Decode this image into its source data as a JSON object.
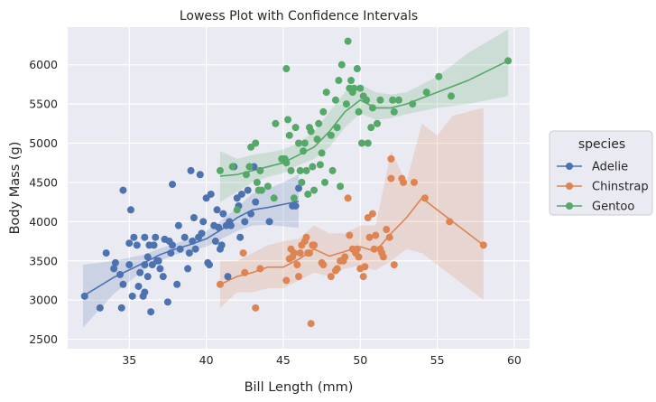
{
  "chart_data": {
    "type": "scatter",
    "title": "Lowess Plot with Confidence Intervals",
    "xlabel": "Bill Length (mm)",
    "ylabel": "Body Mass (g)",
    "xlim": [
      31,
      61
    ],
    "ylim": [
      2380,
      6480
    ],
    "x_ticks": [
      35,
      40,
      45,
      50,
      55,
      60
    ],
    "x_tick_labels": [
      "35",
      "40",
      "45",
      "50",
      "55",
      "60"
    ],
    "y_ticks": [
      2500,
      3000,
      3500,
      4000,
      4500,
      5000,
      5500,
      6000
    ],
    "y_tick_labels": [
      "2500",
      "3000",
      "3500",
      "4000",
      "4500",
      "5000",
      "5500",
      "6000"
    ],
    "grid": true,
    "legend": {
      "title": "species",
      "placement": "center-right outside"
    },
    "series": [
      {
        "name": "Adelie",
        "color": "#4c72b0",
        "points": [
          [
            32.1,
            3050
          ],
          [
            33.1,
            2900
          ],
          [
            33.5,
            3600
          ],
          [
            34.0,
            3400
          ],
          [
            34.1,
            3475
          ],
          [
            34.4,
            3325
          ],
          [
            34.5,
            2900
          ],
          [
            34.6,
            4400
          ],
          [
            34.6,
            3200
          ],
          [
            35.0,
            3450
          ],
          [
            35.0,
            3725
          ],
          [
            35.1,
            4150
          ],
          [
            35.2,
            3050
          ],
          [
            35.3,
            3800
          ],
          [
            35.5,
            3700
          ],
          [
            35.6,
            3175
          ],
          [
            35.7,
            3350
          ],
          [
            35.9,
            3050
          ],
          [
            36.0,
            3450
          ],
          [
            36.0,
            3800
          ],
          [
            36.0,
            3100
          ],
          [
            36.2,
            3550
          ],
          [
            36.2,
            3300
          ],
          [
            36.3,
            3700
          ],
          [
            36.4,
            2850
          ],
          [
            36.5,
            3450
          ],
          [
            36.6,
            3700
          ],
          [
            36.7,
            3800
          ],
          [
            36.8,
            3500
          ],
          [
            36.9,
            3500
          ],
          [
            37.0,
            3400
          ],
          [
            37.2,
            3300
          ],
          [
            37.3,
            3775
          ],
          [
            37.5,
            2975
          ],
          [
            37.6,
            3750
          ],
          [
            37.7,
            3600
          ],
          [
            37.8,
            4475
          ],
          [
            37.8,
            3700
          ],
          [
            38.1,
            3200
          ],
          [
            38.2,
            3950
          ],
          [
            38.3,
            3650
          ],
          [
            38.6,
            3800
          ],
          [
            38.8,
            3400
          ],
          [
            38.9,
            3600
          ],
          [
            39.0,
            4650
          ],
          [
            39.1,
            3750
          ],
          [
            39.2,
            4050
          ],
          [
            39.3,
            3650
          ],
          [
            39.5,
            3800
          ],
          [
            39.6,
            4600
          ],
          [
            39.7,
            3850
          ],
          [
            39.8,
            4000
          ],
          [
            40.0,
            4300
          ],
          [
            40.1,
            3475
          ],
          [
            40.2,
            3450
          ],
          [
            40.3,
            4350
          ],
          [
            40.5,
            3950
          ],
          [
            40.6,
            3750
          ],
          [
            40.7,
            4150
          ],
          [
            40.8,
            3925
          ],
          [
            40.9,
            3650
          ],
          [
            41.0,
            3700
          ],
          [
            41.1,
            4100
          ],
          [
            41.3,
            3950
          ],
          [
            41.4,
            3300
          ],
          [
            41.5,
            4000
          ],
          [
            41.6,
            3950
          ],
          [
            41.8,
            4700
          ],
          [
            42.0,
            4300
          ],
          [
            42.1,
            4200
          ],
          [
            42.2,
            3800
          ],
          [
            42.3,
            4350
          ],
          [
            42.5,
            4000
          ],
          [
            42.7,
            4400
          ],
          [
            42.9,
            4100
          ],
          [
            43.1,
            4700
          ],
          [
            43.2,
            4250
          ],
          [
            44.1,
            4000
          ],
          [
            45.6,
            4200
          ],
          [
            45.8,
            4200
          ],
          [
            46.0,
            4425
          ]
        ],
        "lowess_x": [
          32,
          34,
          36,
          37,
          38,
          39,
          40,
          41,
          42,
          43,
          44,
          45,
          46
        ],
        "lowess_y": [
          3050,
          3290,
          3480,
          3580,
          3650,
          3710,
          3780,
          3900,
          4050,
          4150,
          4180,
          4220,
          4260
        ],
        "ci_lower": [
          2650,
          3080,
          3390,
          3500,
          3580,
          3630,
          3680,
          3780,
          3880,
          3950,
          3960,
          3940,
          3920
        ],
        "ci_upper": [
          3450,
          3500,
          3580,
          3660,
          3720,
          3790,
          3880,
          4020,
          4180,
          4360,
          4420,
          4500,
          4600
        ]
      },
      {
        "name": "Chinstrap",
        "color": "#dd8452",
        "points": [
          [
            40.9,
            3200
          ],
          [
            42.4,
            3600
          ],
          [
            42.5,
            3350
          ],
          [
            43.2,
            2900
          ],
          [
            43.5,
            3400
          ],
          [
            45.2,
            3250
          ],
          [
            45.4,
            3525
          ],
          [
            45.5,
            3650
          ],
          [
            45.6,
            3550
          ],
          [
            45.7,
            3600
          ],
          [
            45.9,
            3450
          ],
          [
            46.0,
            3300
          ],
          [
            46.1,
            3600
          ],
          [
            46.2,
            3700
          ],
          [
            46.4,
            3750
          ],
          [
            46.5,
            3800
          ],
          [
            46.6,
            3600
          ],
          [
            46.7,
            3600
          ],
          [
            46.8,
            2700
          ],
          [
            46.9,
            3700
          ],
          [
            47.0,
            3700
          ],
          [
            47.5,
            3475
          ],
          [
            47.6,
            3450
          ],
          [
            48.1,
            3300
          ],
          [
            48.4,
            3375
          ],
          [
            48.5,
            3400
          ],
          [
            48.7,
            3500
          ],
          [
            48.9,
            3500
          ],
          [
            49.0,
            3550
          ],
          [
            49.2,
            4300
          ],
          [
            49.3,
            3825
          ],
          [
            49.5,
            3650
          ],
          [
            49.7,
            3600
          ],
          [
            49.8,
            3650
          ],
          [
            49.9,
            3550
          ],
          [
            50.0,
            3400
          ],
          [
            50.2,
            3300
          ],
          [
            50.3,
            3425
          ],
          [
            50.5,
            4050
          ],
          [
            50.6,
            3800
          ],
          [
            50.8,
            4100
          ],
          [
            50.9,
            3650
          ],
          [
            51.0,
            3825
          ],
          [
            51.3,
            3650
          ],
          [
            51.4,
            3600
          ],
          [
            51.5,
            3550
          ],
          [
            51.7,
            3900
          ],
          [
            51.9,
            3800
          ],
          [
            52.0,
            4800
          ],
          [
            52.0,
            4550
          ],
          [
            52.2,
            3450
          ],
          [
            52.7,
            4550
          ],
          [
            52.8,
            4500
          ],
          [
            53.5,
            4500
          ],
          [
            54.2,
            4300
          ],
          [
            55.8,
            4000
          ],
          [
            58.0,
            3700
          ]
        ],
        "lowess_x": [
          40.9,
          42,
          43,
          44,
          45,
          46,
          47,
          48,
          49,
          50,
          51,
          52,
          53,
          54,
          55,
          56,
          58
        ],
        "lowess_y": [
          3200,
          3300,
          3350,
          3420,
          3420,
          3520,
          3650,
          3560,
          3620,
          3680,
          3620,
          3850,
          4050,
          4300,
          4150,
          4000,
          3700
        ],
        "ci_lower": [
          2900,
          3100,
          3100,
          3150,
          3150,
          3250,
          3350,
          3300,
          3400,
          3440,
          3380,
          3500,
          3650,
          3600,
          3450,
          3300,
          3000
        ],
        "ci_upper": [
          3500,
          3500,
          3600,
          3700,
          3750,
          3780,
          3950,
          3850,
          3850,
          3950,
          3950,
          4900,
          4500,
          5250,
          5100,
          5350,
          5450
        ]
      },
      {
        "name": "Gentoo",
        "color": "#55a868",
        "points": [
          [
            40.9,
            4650
          ],
          [
            41.7,
            4700
          ],
          [
            42.0,
            4150
          ],
          [
            42.6,
            4600
          ],
          [
            42.8,
            4700
          ],
          [
            42.9,
            4950
          ],
          [
            43.2,
            5000
          ],
          [
            43.3,
            4500
          ],
          [
            43.4,
            4400
          ],
          [
            43.5,
            4650
          ],
          [
            43.6,
            4400
          ],
          [
            44.0,
            4450
          ],
          [
            44.4,
            4300
          ],
          [
            44.5,
            5250
          ],
          [
            44.9,
            4800
          ],
          [
            45.1,
            4800
          ],
          [
            45.2,
            4750
          ],
          [
            45.2,
            5950
          ],
          [
            45.3,
            5300
          ],
          [
            45.4,
            5100
          ],
          [
            45.5,
            4650
          ],
          [
            45.7,
            4300
          ],
          [
            45.8,
            5200
          ],
          [
            46.0,
            5000
          ],
          [
            46.1,
            4650
          ],
          [
            46.2,
            4500
          ],
          [
            46.3,
            4900
          ],
          [
            46.4,
            5000
          ],
          [
            46.5,
            4650
          ],
          [
            46.6,
            4350
          ],
          [
            46.7,
            5200
          ],
          [
            46.8,
            5150
          ],
          [
            46.9,
            4700
          ],
          [
            47.0,
            4400
          ],
          [
            47.2,
            5050
          ],
          [
            47.3,
            5250
          ],
          [
            47.4,
            4725
          ],
          [
            47.5,
            4875
          ],
          [
            47.6,
            5400
          ],
          [
            47.7,
            4500
          ],
          [
            47.8,
            5650
          ],
          [
            48.1,
            5100
          ],
          [
            48.2,
            4650
          ],
          [
            48.4,
            5550
          ],
          [
            48.5,
            5200
          ],
          [
            48.6,
            5800
          ],
          [
            48.7,
            4450
          ],
          [
            48.8,
            6000
          ],
          [
            49.1,
            5500
          ],
          [
            49.2,
            6300
          ],
          [
            49.3,
            5700
          ],
          [
            49.4,
            5800
          ],
          [
            49.5,
            5650
          ],
          [
            49.6,
            5700
          ],
          [
            49.8,
            5950
          ],
          [
            49.9,
            5400
          ],
          [
            50.0,
            5700
          ],
          [
            50.1,
            5000
          ],
          [
            50.2,
            5600
          ],
          [
            50.4,
            5550
          ],
          [
            50.5,
            5000
          ],
          [
            50.7,
            5200
          ],
          [
            50.8,
            5450
          ],
          [
            51.1,
            5250
          ],
          [
            51.3,
            5550
          ],
          [
            52.1,
            5550
          ],
          [
            52.2,
            5400
          ],
          [
            52.5,
            5550
          ],
          [
            53.4,
            5500
          ],
          [
            54.3,
            5650
          ],
          [
            55.1,
            5850
          ],
          [
            55.9,
            5600
          ],
          [
            59.6,
            6050
          ]
        ],
        "lowess_x": [
          40.9,
          42,
          43,
          44,
          45,
          46,
          47,
          48,
          49,
          50,
          51,
          52,
          53,
          55,
          57,
          59.6
        ],
        "lowess_y": [
          4580,
          4600,
          4650,
          4700,
          4750,
          4850,
          4950,
          5150,
          5400,
          5550,
          5450,
          5450,
          5500,
          5650,
          5800,
          6050
        ],
        "ci_lower": [
          4250,
          4380,
          4500,
          4570,
          4620,
          4720,
          4800,
          4950,
          5200,
          5380,
          5300,
          5320,
          5370,
          5450,
          5500,
          5600
        ],
        "ci_upper": [
          4900,
          4800,
          4850,
          4880,
          4920,
          5000,
          5150,
          5400,
          5650,
          5750,
          5650,
          5620,
          5650,
          5850,
          6150,
          6450
        ]
      }
    ]
  }
}
